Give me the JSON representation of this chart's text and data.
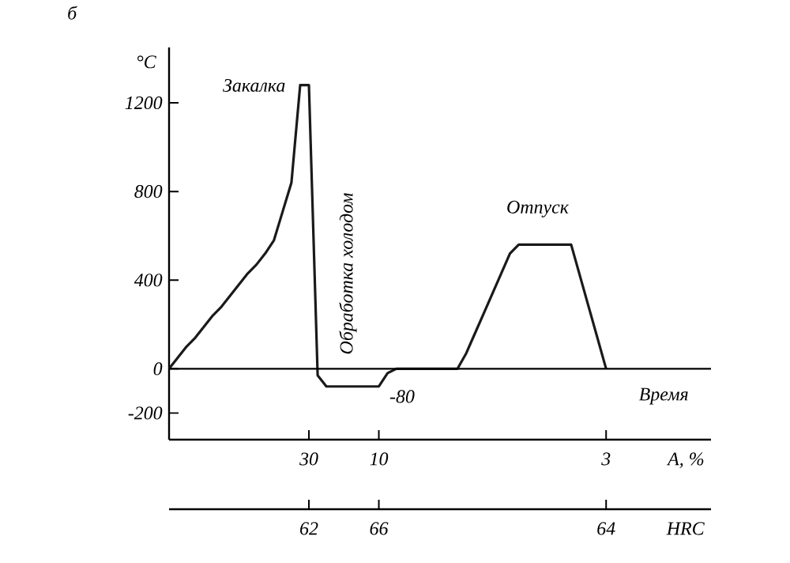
{
  "chart_data": {
    "type": "line",
    "title": "б",
    "ylabel": "°C",
    "xlabel": "A, %",
    "categories": [
      null,
      null,
      null,
      null,
      null,
      null,
      null,
      null,
      null,
      null,
      null,
      null,
      null,
      null,
      null,
      null,
      "30",
      null,
      null,
      null,
      null,
      null,
      null,
      null,
      "10",
      null,
      null,
      null,
      null,
      null,
      null,
      null,
      null,
      null,
      null,
      null,
      null,
      null,
      null,
      null,
      null,
      null,
      null,
      null,
      null,
      null,
      null,
      null,
      null,
      null,
      "3",
      null,
      null,
      null,
      null,
      null,
      null,
      null,
      null,
      null,
      null,
      null,
      null
    ],
    "series": [
      {
        "color": "#1a1a1a",
        "values": [
          0,
          50,
          100,
          140,
          190,
          240,
          280,
          330,
          380,
          430,
          470,
          520,
          580,
          710,
          840,
          1280,
          1280,
          -30,
          -80,
          -80,
          -80,
          -80,
          -80,
          -80,
          -80,
          -20,
          0,
          0,
          0,
          0,
          0,
          0,
          0,
          0,
          70,
          160,
          250,
          340,
          430,
          520,
          560,
          560,
          560,
          560,
          560,
          560,
          560,
          420,
          280,
          140,
          0,
          null,
          null,
          null,
          null,
          null,
          null,
          null,
          null,
          null,
          null,
          null,
          null
        ]
      }
    ],
    "ylim": [
      -320,
      1450
    ],
    "yticks": [
      -200,
      0,
      400,
      800,
      1200
    ],
    "ref_lines": [
      {
        "axis": "y",
        "value": 0,
        "label": "Время"
      }
    ],
    "annotations": [
      "Закалка",
      "Обработка холодом",
      "-80",
      "Отпуск",
      {
        "text": "62",
        "x": "30"
      },
      {
        "text": "66",
        "x": "10"
      },
      {
        "text": "64",
        "x": "3"
      },
      "HRC"
    ],
    "marker": "none",
    "line_style": "solid"
  }
}
